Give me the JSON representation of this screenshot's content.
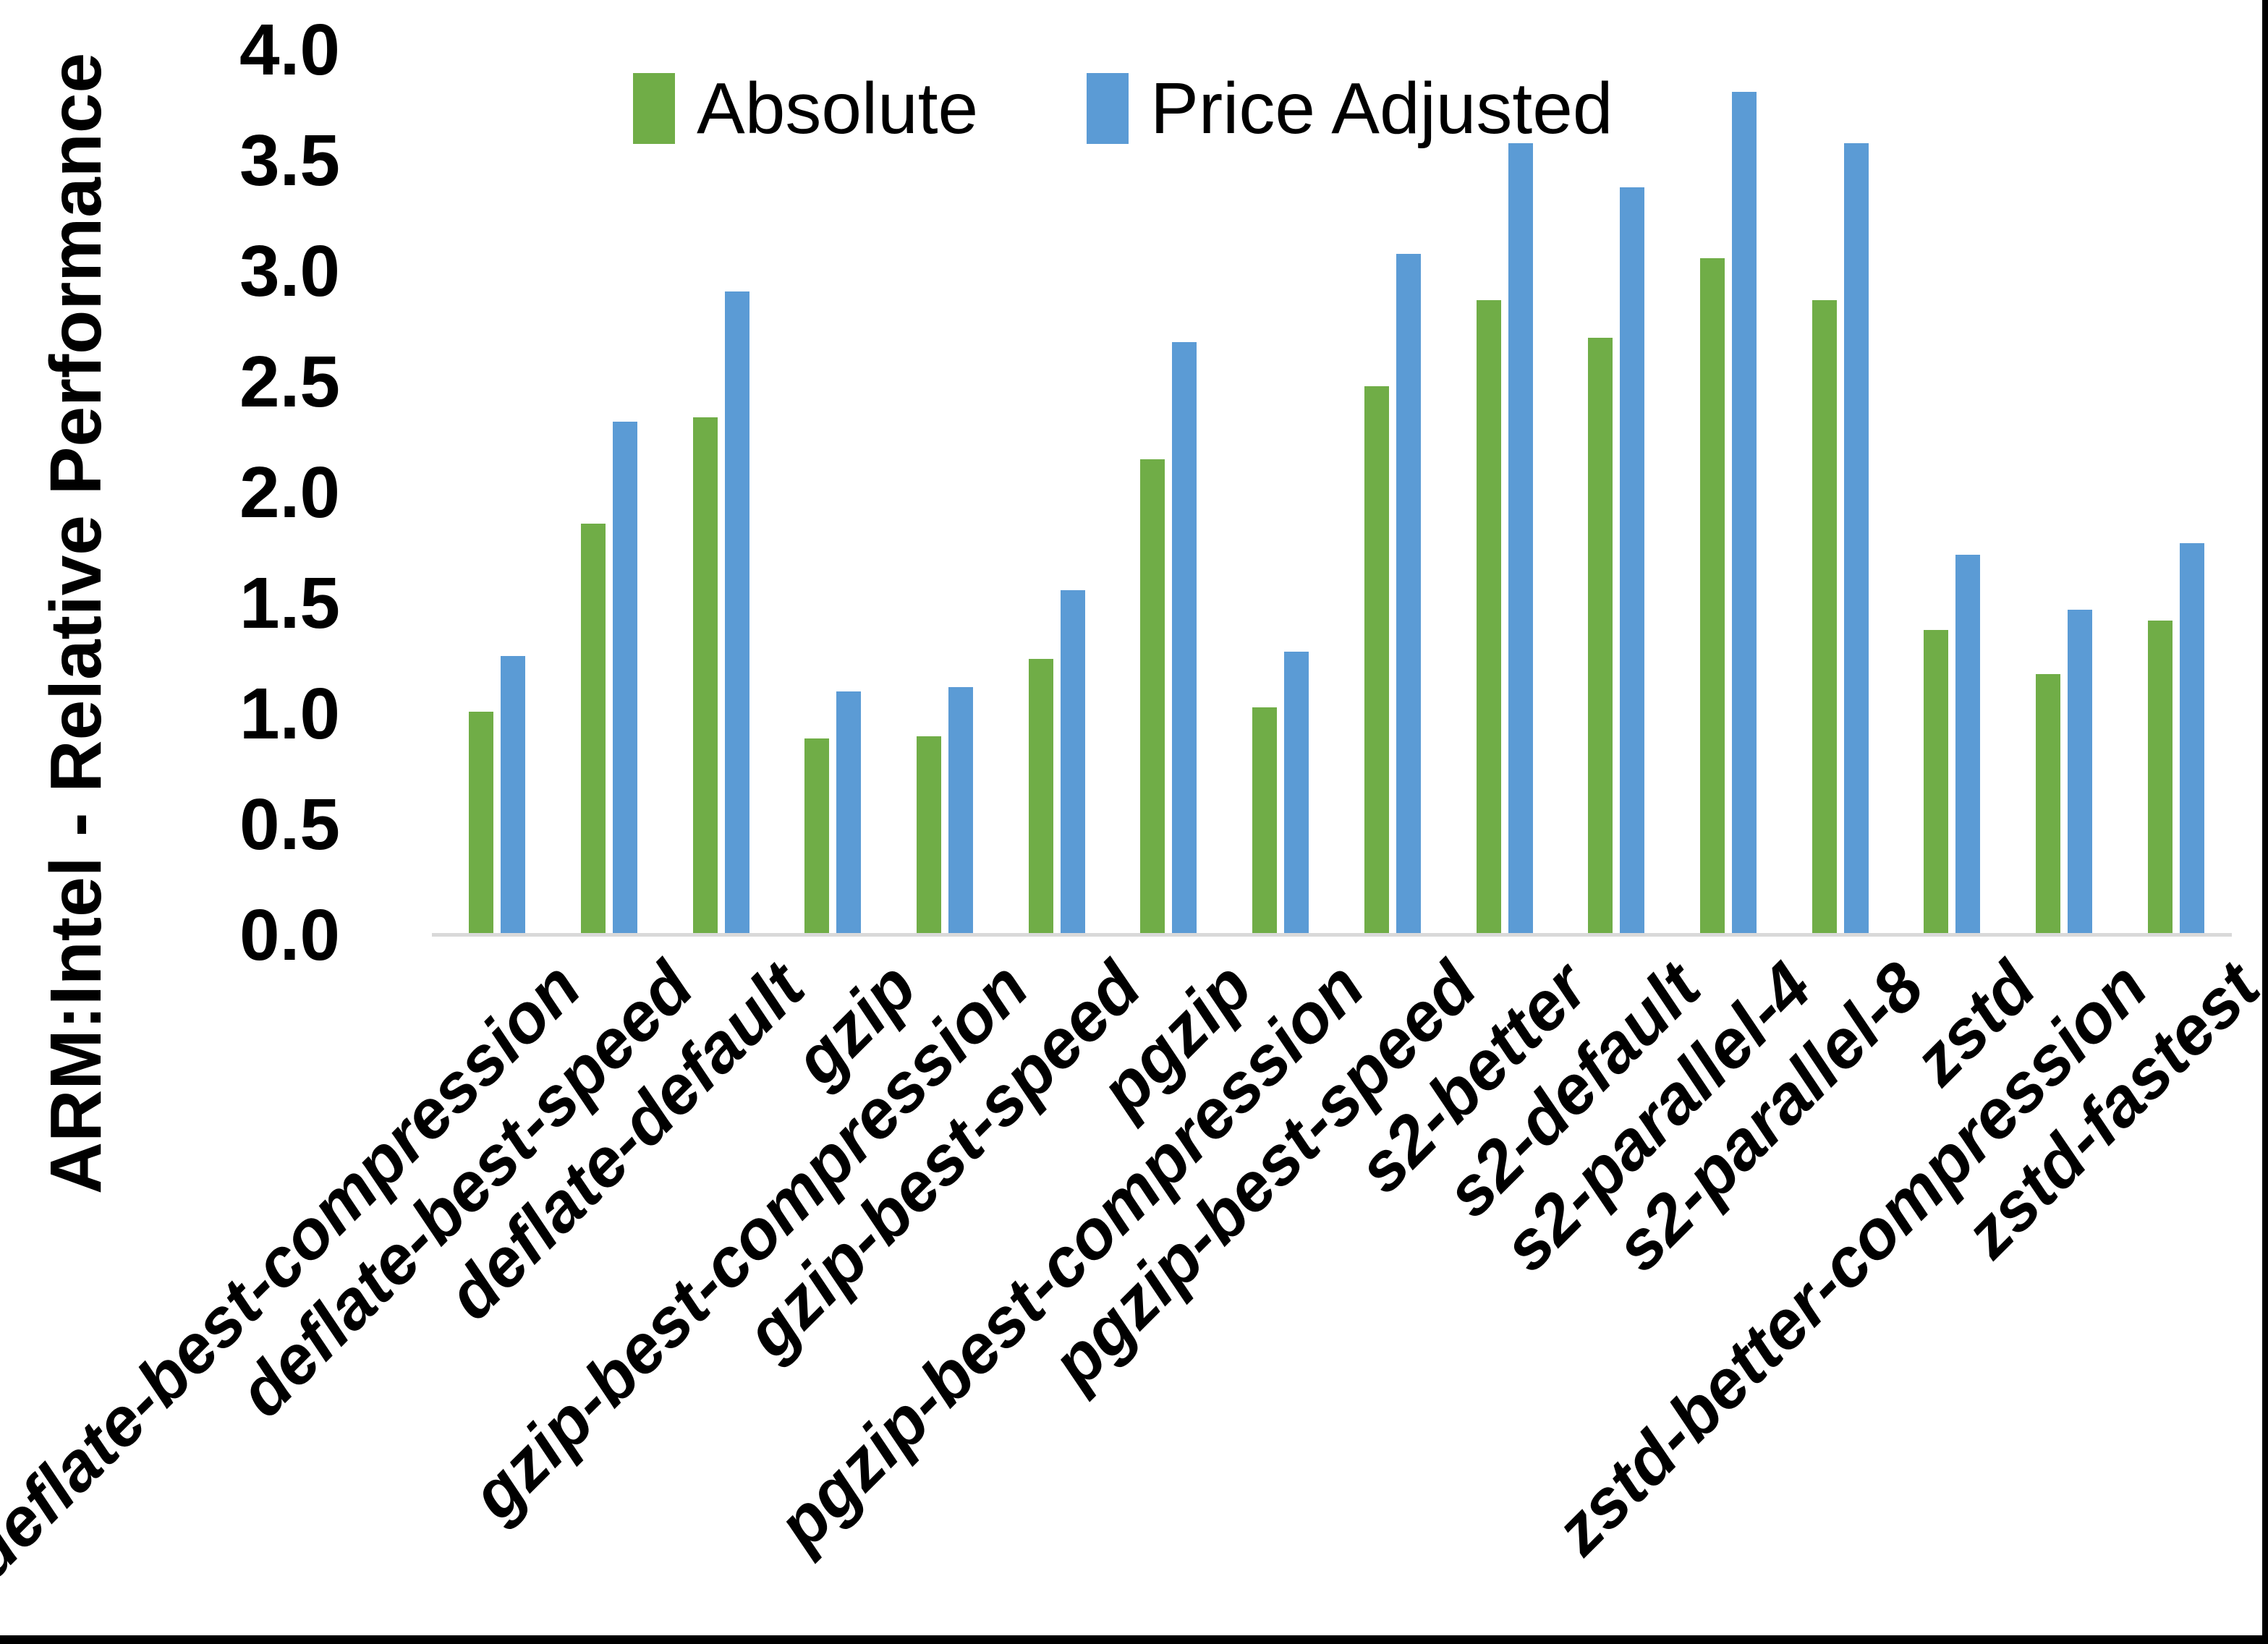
{
  "chart_data": {
    "type": "bar",
    "title": "",
    "ylabel": "ARM:Intel - Relative Performance",
    "xlabel": "",
    "ylim": [
      0.0,
      4.0
    ],
    "ytick_step": 0.5,
    "grid": false,
    "legend_position": "top-center",
    "categories": [
      "deflate-best-compression",
      "deflate-best-speed",
      "deflate-default",
      "gzip",
      "gzip-best-compression",
      "gzip-best-speed",
      "pgzip",
      "pgzip-best-compression",
      "pgzip-best-speed",
      "s2-better",
      "s2-default",
      "s2-parallel-4",
      "s2-parallel-8",
      "zstd",
      "zstd-better-compression",
      "zstd-fastest"
    ],
    "series": [
      {
        "name": "Absolute",
        "color": "#70AD47",
        "values": [
          1.01,
          1.86,
          2.34,
          0.89,
          0.9,
          1.25,
          2.15,
          1.03,
          2.48,
          2.87,
          2.7,
          3.06,
          2.87,
          1.38,
          1.18,
          1.42
        ]
      },
      {
        "name": "Price Adjusted",
        "color": "#5B9BD5",
        "values": [
          1.26,
          2.32,
          2.91,
          1.1,
          1.12,
          1.56,
          2.68,
          1.28,
          3.08,
          3.58,
          3.38,
          3.81,
          3.58,
          1.72,
          1.47,
          1.77
        ]
      }
    ]
  },
  "colors": {
    "axis_line": "#D9D9D9",
    "text": "#000000",
    "frame_border": "#000000",
    "background": "#FFFFFF"
  }
}
